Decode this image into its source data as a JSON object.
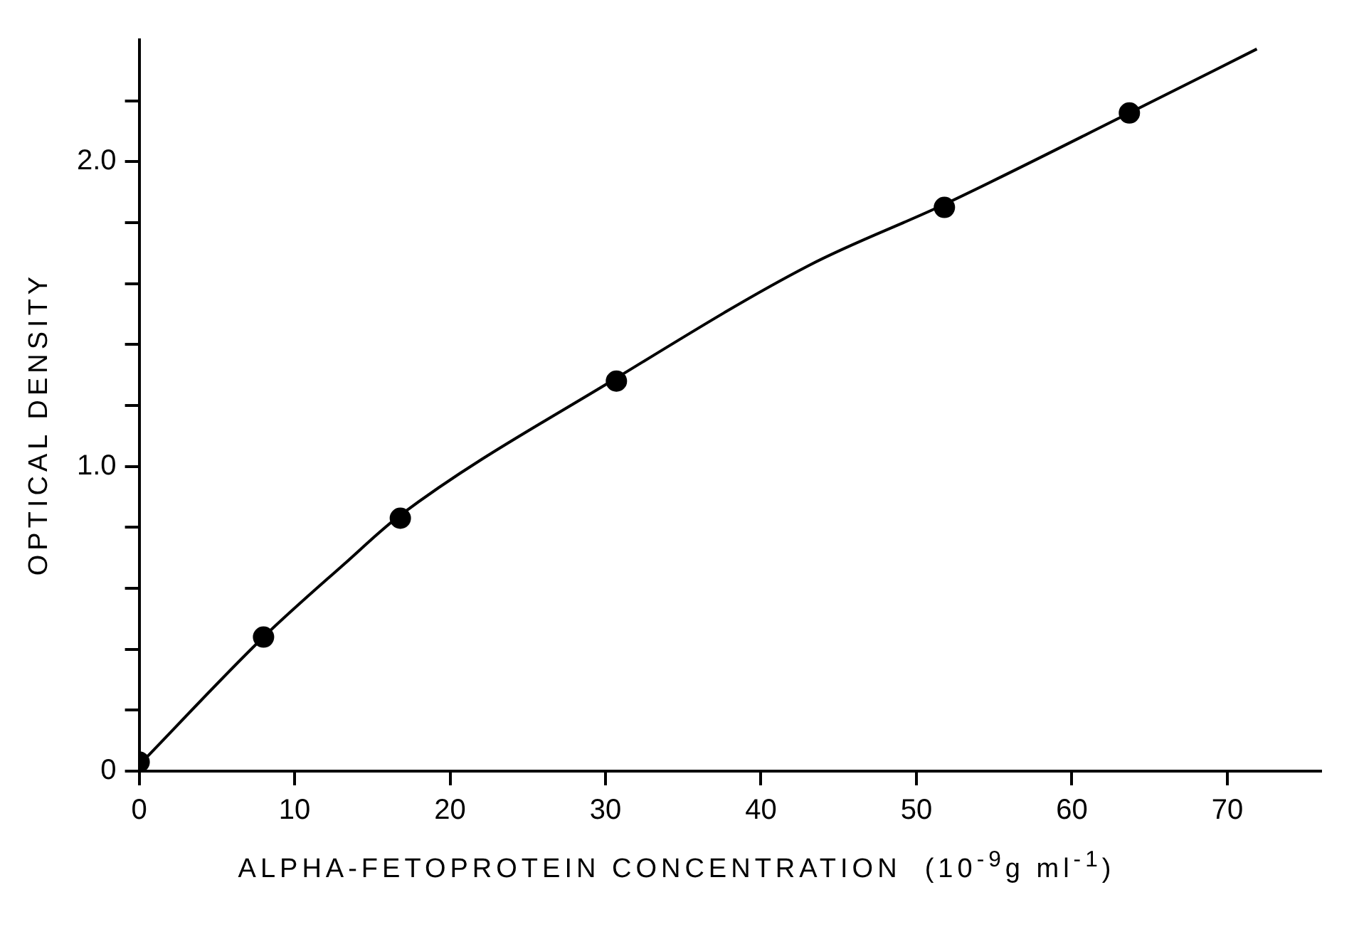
{
  "chart_data": {
    "type": "scatter",
    "xlabel": "ALPHA-FETOPROTEIN CONCENTRATION  (10$^{-9}$g ml$^{-1}$)",
    "ylabel": "OPTICAL DENSITY",
    "series": [
      {
        "type": "scatter",
        "color": "#000000",
        "marker": "circle",
        "x": [
          0,
          8.0,
          16.8,
          30.7,
          51.8,
          63.7
        ],
        "values": [
          0.03,
          0.44,
          0.83,
          1.28,
          1.85,
          2.16
        ]
      },
      {
        "type": "line",
        "color": "#000000",
        "marker": "none",
        "line_style": "solid",
        "x": [
          0,
          8.0,
          13.2,
          16.8,
          30.7,
          43.1,
          51.8,
          63.7,
          71.9
        ],
        "values": [
          0.02,
          0.44,
          0.68,
          0.84,
          1.29,
          1.66,
          1.86,
          2.16,
          2.37
        ]
      }
    ],
    "xlim": [
      0,
      76
    ],
    "ylim": [
      0,
      2.4
    ],
    "xticks": [
      0,
      10,
      20,
      30,
      40,
      50,
      60,
      70
    ],
    "yticks": [
      0,
      {
        "value": 0.2,
        "label": null
      },
      {
        "value": 0.4,
        "label": null
      },
      {
        "value": 0.6,
        "label": null
      },
      {
        "value": 0.8,
        "label": null
      },
      {
        "value": 1.0,
        "label": "1.0"
      },
      {
        "value": 1.2,
        "label": null
      },
      {
        "value": 1.4,
        "label": null
      },
      {
        "value": 1.6,
        "label": null
      },
      {
        "value": 1.8,
        "label": null
      },
      {
        "value": 2.0,
        "label": "2.0"
      },
      {
        "value": 2.2,
        "label": null
      }
    ],
    "grid": false,
    "legend": false
  }
}
